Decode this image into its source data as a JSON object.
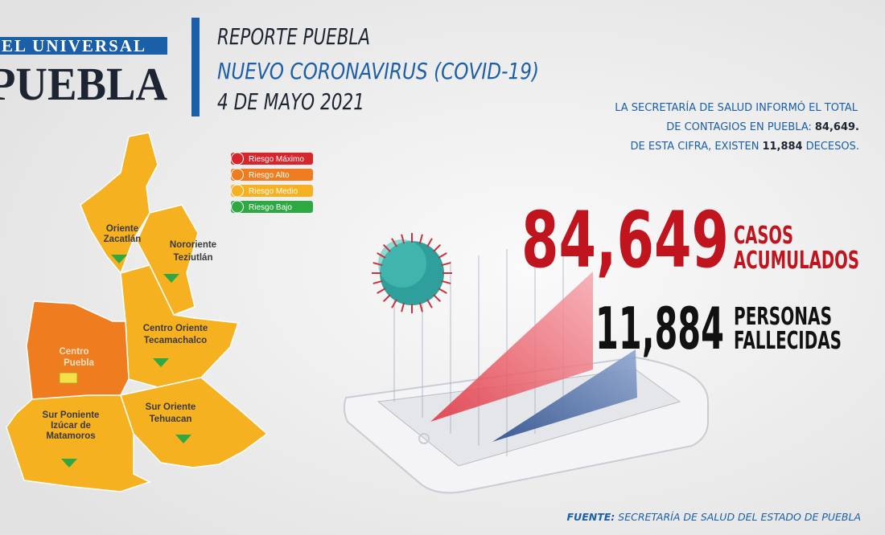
{
  "logo": {
    "top": "EL UNIVERSAL",
    "bottom": "PUEBLA"
  },
  "header": {
    "line1": "REPORTE PUEBLA",
    "line2": "NUEVO CORONAVIRUS (COVID-19)",
    "line3": "4 DE MAYO 2021"
  },
  "info": {
    "line1": "LA SECRETARÍA DE SALUD  INFORMÓ EL TOTAL",
    "line2": {
      "text": "DE CONTAGIOS EN PUEBLA:",
      "highlight": "84,649."
    },
    "line3": {
      "text": "DE ESTA CIFRA, EXISTEN",
      "highlight": "11,884",
      "tail": "DECESOS."
    }
  },
  "legend": [
    {
      "label": "Riesgo Máximo",
      "color": "#d7262b"
    },
    {
      "label": "Riesgo Alto",
      "color": "#ef7d1f"
    },
    {
      "label": "Riesgo Medio",
      "color": "#f5b120"
    },
    {
      "label": "Riesgo Bajo",
      "color": "#2ea843"
    }
  ],
  "regions": [
    {
      "lines": [
        "Oriente",
        "Zacatlán"
      ],
      "color": "#f5b120"
    },
    {
      "lines": [
        "Nororiente",
        "Teziutlán"
      ],
      "color": "#f5b120"
    },
    {
      "lines": [
        "Centro Oriente",
        "Tecamachalco"
      ],
      "color": "#f5b120"
    },
    {
      "lines": [
        "Centro",
        "Puebla"
      ],
      "color": "#ef7d1f"
    },
    {
      "lines": [
        "Sur Poniente",
        "Izúcar de",
        "Matamoros"
      ],
      "color": "#f5b120"
    },
    {
      "lines": [
        "Sur Oriente",
        "Tehuacan"
      ],
      "color": "#f5b120"
    }
  ],
  "stats": [
    {
      "number": "84,649",
      "lines": [
        "CASOS",
        "ACUMULADOS"
      ],
      "color": "#c0141e"
    },
    {
      "number": "11,884",
      "lines": [
        "PERSONAS",
        "FALLECIDAS"
      ],
      "color": "#111111"
    }
  ],
  "footer": {
    "label": "FUENTE:",
    "text": "SECRETARÍA DE SALUD DEL ESTADO DE PUEBLA"
  }
}
